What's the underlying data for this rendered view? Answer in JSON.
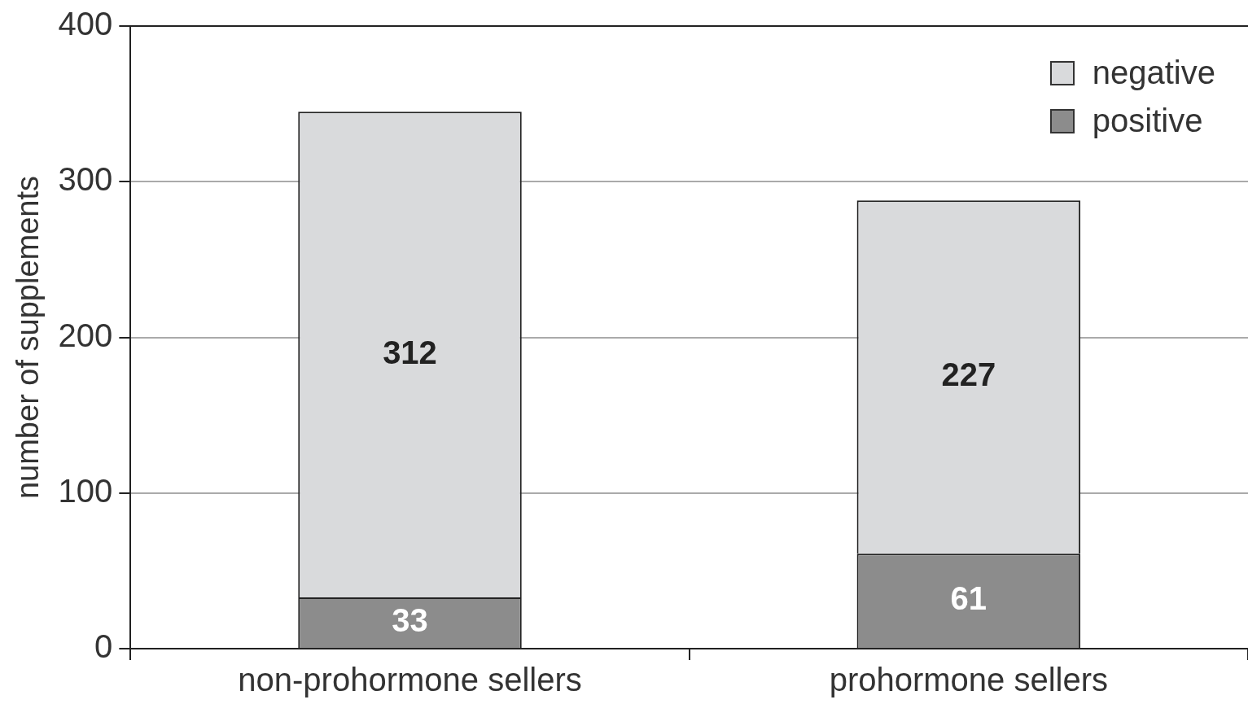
{
  "chart_data": {
    "type": "bar",
    "stacked": true,
    "categories": [
      "non-prohormone sellers",
      "prohormone sellers"
    ],
    "ylabel": "number of supplements",
    "ylim": [
      0,
      400
    ],
    "yticks": [
      0,
      100,
      200,
      300,
      400
    ],
    "grid": "y",
    "legend": "top right",
    "data_labels": true,
    "series": [
      {
        "name": "positive",
        "color": "#8c8c8c",
        "values": [
          33,
          61
        ]
      },
      {
        "name": "negative",
        "color": "#d9dadc",
        "values": [
          312,
          227
        ]
      }
    ]
  }
}
